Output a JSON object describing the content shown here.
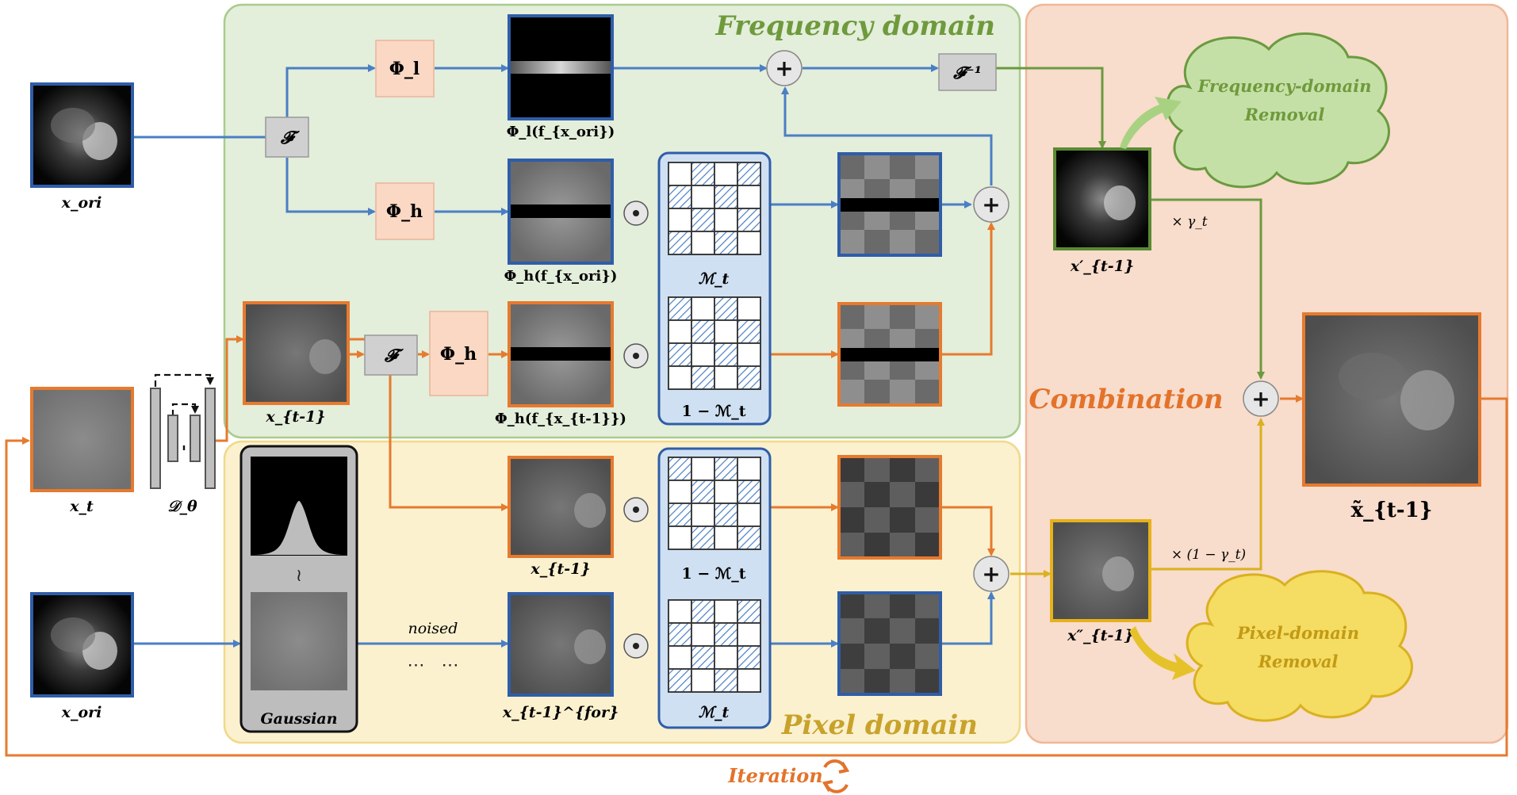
{
  "panels": {
    "frequency": "Frequency domain",
    "pixel": "Pixel domain",
    "combination": "Combination"
  },
  "labels": {
    "x_ori_top": "x_ori",
    "x_ori_bottom": "x_ori",
    "x_t": "x_t",
    "d_theta": "𝒟_θ",
    "x_tm1_freq": "x_{t-1}",
    "x_tm1_pixel": "x_{t-1}",
    "x_for": "x_{t-1}^{for}",
    "phi_l_f": "Φ_l(f_{x_ori})",
    "phi_h_f": "Φ_h(f_{x_ori})",
    "phi_h_f_tm1": "Φ_h(f_{x_{t-1}})",
    "M_t": "ℳ_t",
    "one_minus_M_t": "1 − ℳ_t",
    "x_prime": "x′_{t-1}",
    "x_dprime": "x″_{t-1}",
    "x_tilde": "x̃_{t-1}",
    "gaussian": "Gaussian",
    "noised": "noised",
    "dots": "⋯   ⋯",
    "tilde": "≀",
    "gamma": "× γ_t",
    "one_minus_gamma": "× (1 − γ_t)",
    "iteration": "Iteration"
  },
  "operators": {
    "fourier": "𝓕",
    "inverse_fourier": "𝓕⁻¹",
    "phi_l": "Φ_l",
    "phi_h": "Φ_h",
    "plus": "+",
    "dot": "⊙"
  },
  "clouds": {
    "frequency_removal": [
      "Frequency-domain",
      "Removal"
    ],
    "pixel_removal": [
      "Pixel-domain",
      "Removal"
    ]
  },
  "colors": {
    "blue": "#4a7fc4",
    "orange": "#e67a2e",
    "green": "#6a9a3e",
    "yellow": "#d9b11f",
    "freq_bg": "#e3eedb",
    "pixel_bg": "#fbf1cf",
    "comb_bg": "#f8dccc",
    "freq_title": "#6f9a3c",
    "pixel_title": "#c8a22a",
    "comb_title": "#e3732b"
  }
}
